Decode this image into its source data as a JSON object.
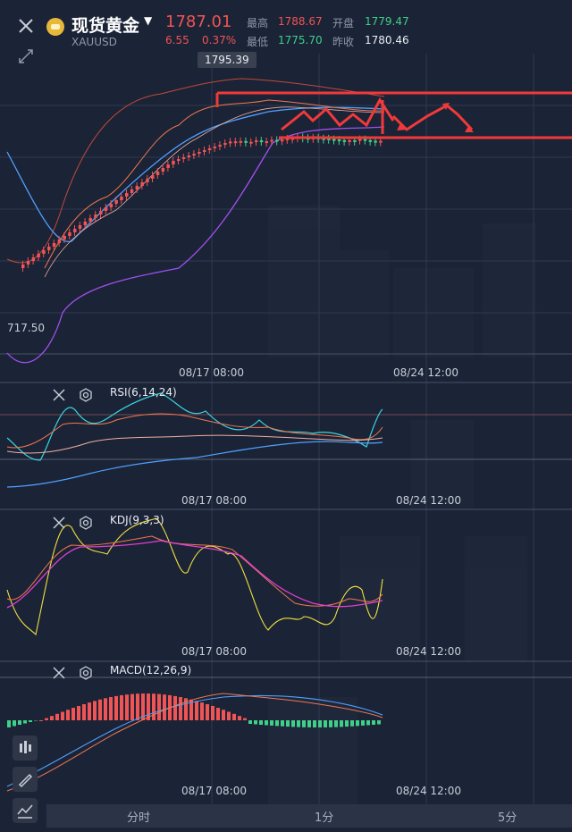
{
  "symbol": {
    "name": "现货黄金",
    "code": "XAUUSD"
  },
  "quote": {
    "price": "1787.01",
    "change": "6.55",
    "change_pct": "0.37%",
    "high_label": "最高",
    "high": "1788.67",
    "open_label": "开盘",
    "open": "1779.47",
    "low_label": "最低",
    "low": "1775.70",
    "prev_label": "昨收",
    "prev": "1780.46"
  },
  "main_chart": {
    "tooltip_price": "1795.39",
    "left_axis_value": "717.50",
    "time_labels": [
      "08/17 08:00",
      "08/24 12:00"
    ]
  },
  "indicators": {
    "rsi": {
      "label": "RSI(6,14,24)",
      "time_labels": [
        "08/17 08:00",
        "08/24 12:00"
      ]
    },
    "kdj": {
      "label": "KDJ(9,3,3)",
      "time_labels": [
        "08/17 08:00",
        "08/24 12:00"
      ]
    },
    "macd": {
      "label": "MACD(12,26,9)",
      "time_labels": [
        "08/17 08:00",
        "08/24 12:00"
      ]
    }
  },
  "tabs": [
    "分时",
    "1分",
    "5分"
  ],
  "colors": {
    "background": "#1b2336",
    "up": "#f05454",
    "down": "#3fd08a",
    "annotation": "#f03a3a",
    "ma_orange": "#f07850",
    "ma_blue": "#4fa0ff",
    "boll_purple": "#a050f0",
    "rsi_cyan": "#3ad6e0",
    "kdj_yellow": "#f0e040",
    "kdj_magenta": "#e040d0"
  },
  "icons": [
    "close-icon",
    "fullscreen-icon",
    "gear-icon",
    "candlestick-icon",
    "pen-icon",
    "line-icon"
  ]
}
